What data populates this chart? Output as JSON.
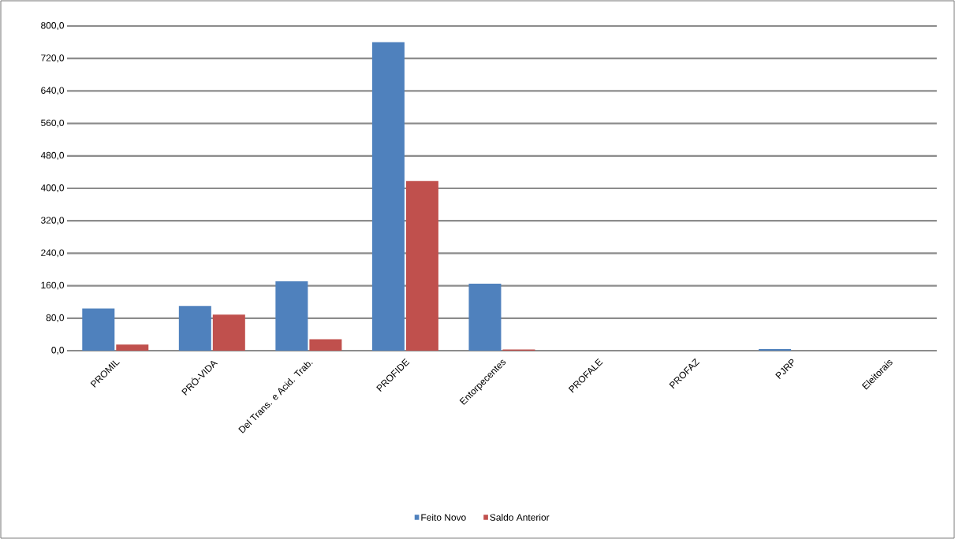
{
  "chart_data": {
    "type": "bar",
    "categories": [
      "PROMIL",
      "PRÓ-VIDA",
      "Del Trans. e Acid. Trab.",
      "PROFIDE",
      "Entorpecentes",
      "PROFALE",
      "PROFAZ",
      "PJRP",
      "Eleitorais"
    ],
    "series": [
      {
        "name": "Feito Novo",
        "color": "#4f81bd",
        "values": [
          104,
          110,
          171,
          760,
          165,
          0,
          0,
          4,
          0
        ]
      },
      {
        "name": "Saldo Anterior",
        "color": "#c0504d",
        "values": [
          15,
          89,
          28,
          418,
          3,
          0,
          0,
          0,
          0
        ]
      }
    ],
    "ylim": [
      0,
      800
    ],
    "yticks": [
      {
        "value": 0,
        "label": "0,0"
      },
      {
        "value": 80,
        "label": "80,0"
      },
      {
        "value": 160,
        "label": "160,0"
      },
      {
        "value": 240,
        "label": "240,0"
      },
      {
        "value": 320,
        "label": "320,0"
      },
      {
        "value": 400,
        "label": "400,0"
      },
      {
        "value": 480,
        "label": "480,0"
      },
      {
        "value": 560,
        "label": "560,0"
      },
      {
        "value": 640,
        "label": "640,0"
      },
      {
        "value": 720,
        "label": "720,0"
      },
      {
        "value": 800,
        "label": "800,0"
      }
    ],
    "grid": "y",
    "legend": "bottom"
  }
}
